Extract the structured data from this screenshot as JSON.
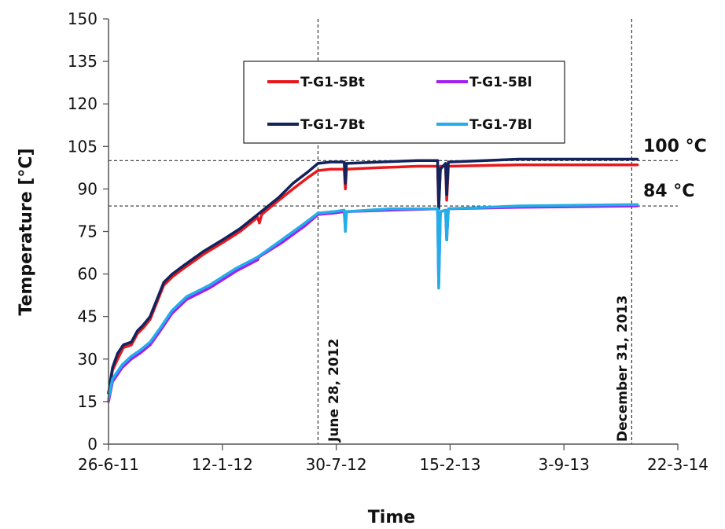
{
  "chart_data": {
    "type": "line",
    "xlabel": "Time",
    "ylabel": "Temperature [°C]",
    "ylim": [
      0,
      150
    ],
    "yticks": [
      0,
      15,
      30,
      45,
      60,
      75,
      90,
      105,
      120,
      135,
      150
    ],
    "xlim": [
      "2011-06-26",
      "2014-03-22"
    ],
    "xticks": [
      {
        "date": "2011-06-26",
        "label": "26-6-11"
      },
      {
        "date": "2012-01-12",
        "label": "12-1-12"
      },
      {
        "date": "2012-07-30",
        "label": "30-7-12"
      },
      {
        "date": "2013-02-15",
        "label": "15-2-13"
      },
      {
        "date": "2013-09-03",
        "label": "3-9-13"
      },
      {
        "date": "2014-03-22",
        "label": "22-3-14"
      }
    ],
    "grid": false,
    "legend_position": "top-center",
    "reference_lines": {
      "horizontal": [
        {
          "y": 100,
          "label": "100 °C"
        },
        {
          "y": 84,
          "label": "84 °C"
        }
      ],
      "vertical": [
        {
          "date": "2012-06-28",
          "label": "June 28, 2012"
        },
        {
          "date": "2013-12-31",
          "label": "December 31, 2013"
        }
      ]
    },
    "series": [
      {
        "name": "T-G1-5Bt",
        "color": "#e8191c",
        "points": [
          [
            "2011-06-26",
            18
          ],
          [
            "2011-07-03",
            26
          ],
          [
            "2011-07-12",
            30
          ],
          [
            "2011-07-22",
            34
          ],
          [
            "2011-08-05",
            35
          ],
          [
            "2011-08-16",
            39
          ],
          [
            "2011-08-26",
            41
          ],
          [
            "2011-09-07",
            44
          ],
          [
            "2011-09-17",
            49
          ],
          [
            "2011-10-01",
            56
          ],
          [
            "2011-10-16",
            59
          ],
          [
            "2011-11-05",
            62
          ],
          [
            "2011-12-10",
            67
          ],
          [
            "2012-01-12",
            71
          ],
          [
            "2012-02-12",
            75
          ],
          [
            "2012-03-14",
            80
          ],
          [
            "2012-03-17",
            78
          ],
          [
            "2012-03-21",
            81
          ],
          [
            "2012-04-20",
            86
          ],
          [
            "2012-05-15",
            90
          ],
          [
            "2012-06-10",
            94
          ],
          [
            "2012-06-28",
            96.5
          ],
          [
            "2012-07-20",
            97
          ],
          [
            "2012-08-13",
            97
          ],
          [
            "2012-08-15",
            90
          ],
          [
            "2012-08-17",
            97
          ],
          [
            "2012-10-15",
            97.5
          ],
          [
            "2012-12-20",
            98
          ],
          [
            "2013-01-24",
            98
          ],
          [
            "2013-01-26",
            83
          ],
          [
            "2013-01-29",
            98
          ],
          [
            "2013-02-07",
            98
          ],
          [
            "2013-02-09",
            86
          ],
          [
            "2013-02-12",
            98
          ],
          [
            "2013-06-15",
            98.5
          ],
          [
            "2014-01-10",
            98.5
          ]
        ]
      },
      {
        "name": "T-G1-5Bl",
        "color": "#a020f0",
        "points": [
          [
            "2011-06-26",
            15
          ],
          [
            "2011-07-03",
            22
          ],
          [
            "2011-07-20",
            27
          ],
          [
            "2011-08-05",
            30
          ],
          [
            "2011-08-20",
            32
          ],
          [
            "2011-09-07",
            35
          ],
          [
            "2011-09-25",
            40
          ],
          [
            "2011-10-15",
            46
          ],
          [
            "2011-11-10",
            51
          ],
          [
            "2011-12-20",
            55
          ],
          [
            "2012-02-05",
            61
          ],
          [
            "2012-03-14",
            65
          ],
          [
            "2012-03-16",
            66
          ],
          [
            "2012-04-25",
            71
          ],
          [
            "2012-06-05",
            77
          ],
          [
            "2012-06-28",
            81
          ],
          [
            "2012-07-25",
            81.5
          ],
          [
            "2012-08-13",
            82
          ],
          [
            "2012-08-15",
            76
          ],
          [
            "2012-08-17",
            82
          ],
          [
            "2012-11-01",
            82.5
          ],
          [
            "2013-01-24",
            83
          ],
          [
            "2013-01-26",
            56
          ],
          [
            "2013-01-29",
            82
          ],
          [
            "2013-02-07",
            82.5
          ],
          [
            "2013-02-09",
            72
          ],
          [
            "2013-02-12",
            83
          ],
          [
            "2013-06-15",
            83.5
          ],
          [
            "2014-01-10",
            84
          ]
        ]
      },
      {
        "name": "T-G1-7Bt",
        "color": "#12235e",
        "points": [
          [
            "2011-06-26",
            18
          ],
          [
            "2011-07-03",
            27
          ],
          [
            "2011-07-12",
            32
          ],
          [
            "2011-07-22",
            35
          ],
          [
            "2011-08-05",
            36
          ],
          [
            "2011-08-16",
            40
          ],
          [
            "2011-08-26",
            42
          ],
          [
            "2011-09-07",
            45
          ],
          [
            "2011-09-17",
            50
          ],
          [
            "2011-10-01",
            57
          ],
          [
            "2011-10-16",
            60
          ],
          [
            "2011-11-05",
            63
          ],
          [
            "2011-12-10",
            68
          ],
          [
            "2012-01-12",
            72
          ],
          [
            "2012-02-12",
            76
          ],
          [
            "2012-03-14",
            81
          ],
          [
            "2012-04-20",
            87
          ],
          [
            "2012-05-15",
            92
          ],
          [
            "2012-06-10",
            96
          ],
          [
            "2012-06-28",
            99
          ],
          [
            "2012-07-20",
            99.5
          ],
          [
            "2012-08-13",
            99.5
          ],
          [
            "2012-08-15",
            92
          ],
          [
            "2012-08-17",
            99
          ],
          [
            "2012-10-15",
            99.5
          ],
          [
            "2012-12-20",
            100
          ],
          [
            "2013-01-24",
            100
          ],
          [
            "2013-01-26",
            83
          ],
          [
            "2013-01-29",
            97
          ],
          [
            "2013-02-07",
            99
          ],
          [
            "2013-02-09",
            88
          ],
          [
            "2013-02-12",
            99.5
          ],
          [
            "2013-06-15",
            100.5
          ],
          [
            "2014-01-10",
            100.5
          ]
        ]
      },
      {
        "name": "T-G1-7Bl",
        "color": "#22aee8",
        "points": [
          [
            "2011-06-26",
            16
          ],
          [
            "2011-07-03",
            23
          ],
          [
            "2011-07-20",
            28
          ],
          [
            "2011-08-05",
            31
          ],
          [
            "2011-08-20",
            33
          ],
          [
            "2011-09-07",
            36
          ],
          [
            "2011-09-25",
            41
          ],
          [
            "2011-10-15",
            47
          ],
          [
            "2011-11-10",
            52
          ],
          [
            "2011-12-20",
            56
          ],
          [
            "2012-02-05",
            62
          ],
          [
            "2012-03-14",
            66
          ],
          [
            "2012-04-25",
            72
          ],
          [
            "2012-06-05",
            78
          ],
          [
            "2012-06-28",
            81.5
          ],
          [
            "2012-07-25",
            82
          ],
          [
            "2012-08-13",
            82.5
          ],
          [
            "2012-08-15",
            75
          ],
          [
            "2012-08-17",
            82
          ],
          [
            "2012-11-01",
            83
          ],
          [
            "2013-01-24",
            83
          ],
          [
            "2013-01-26",
            55
          ],
          [
            "2013-01-29",
            82
          ],
          [
            "2013-02-07",
            82.5
          ],
          [
            "2013-02-09",
            72
          ],
          [
            "2013-02-12",
            83
          ],
          [
            "2013-06-15",
            84
          ],
          [
            "2014-01-10",
            84.5
          ]
        ]
      }
    ]
  }
}
